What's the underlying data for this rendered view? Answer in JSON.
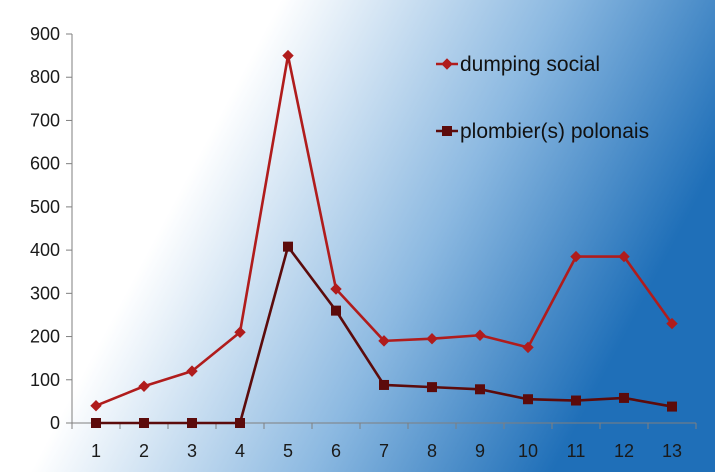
{
  "chart_data": {
    "type": "line",
    "categories": [
      "1",
      "2",
      "3",
      "4",
      "5",
      "6",
      "7",
      "8",
      "9",
      "10",
      "11",
      "12",
      "13"
    ],
    "series": [
      {
        "name": "dumping social",
        "values": [
          40,
          85,
          120,
          210,
          850,
          310,
          190,
          195,
          203,
          175,
          385,
          385,
          230
        ],
        "color": "#b01c1c",
        "marker": "diamond"
      },
      {
        "name": "plombier(s) polonais",
        "values": [
          0,
          0,
          0,
          0,
          408,
          260,
          88,
          83,
          78,
          55,
          52,
          58,
          38
        ],
        "color": "#5c0b0b",
        "marker": "square"
      }
    ],
    "ylim": [
      0,
      900
    ],
    "yticks": [
      0,
      100,
      200,
      300,
      400,
      500,
      600,
      700,
      800,
      900
    ],
    "grid": false,
    "legend": "top-right",
    "background": "gradient white to blue (left to right)",
    "gradient_colors": [
      "#ffffff",
      "#1f6fb8"
    ]
  }
}
